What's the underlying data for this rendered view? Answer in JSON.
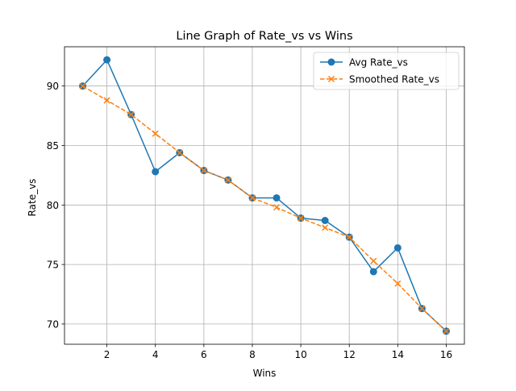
{
  "chart_data": {
    "type": "line",
    "title": "Line Graph of Rate_vs vs Wins",
    "xlabel": "Wins",
    "ylabel": "Rate_vs",
    "xlim": [
      0.25,
      16.75
    ],
    "ylim": [
      68.3,
      93.3
    ],
    "xticks": [
      2,
      4,
      6,
      8,
      10,
      12,
      14,
      16
    ],
    "yticks": [
      70,
      75,
      80,
      85,
      90
    ],
    "grid": true,
    "legend_position": "upper right",
    "x": [
      1,
      2,
      3,
      4,
      5,
      6,
      7,
      8,
      9,
      10,
      11,
      12,
      13,
      14,
      15,
      16
    ],
    "series": [
      {
        "name": "Avg Rate_vs",
        "color": "#1f77b4",
        "line_style": "solid",
        "marker": "circle",
        "values": [
          90.0,
          92.2,
          87.6,
          82.8,
          84.4,
          82.9,
          82.1,
          80.6,
          80.6,
          78.9,
          78.7,
          77.3,
          74.4,
          76.4,
          71.3,
          69.4
        ]
      },
      {
        "name": "Smoothed Rate_vs",
        "color": "#ff7f0e",
        "line_style": "dashed",
        "marker": "x",
        "values": [
          90.0,
          88.8,
          87.6,
          86.0,
          84.4,
          82.9,
          82.1,
          80.6,
          79.8,
          78.9,
          78.1,
          77.3,
          75.3,
          73.4,
          71.3,
          69.4
        ]
      }
    ]
  }
}
